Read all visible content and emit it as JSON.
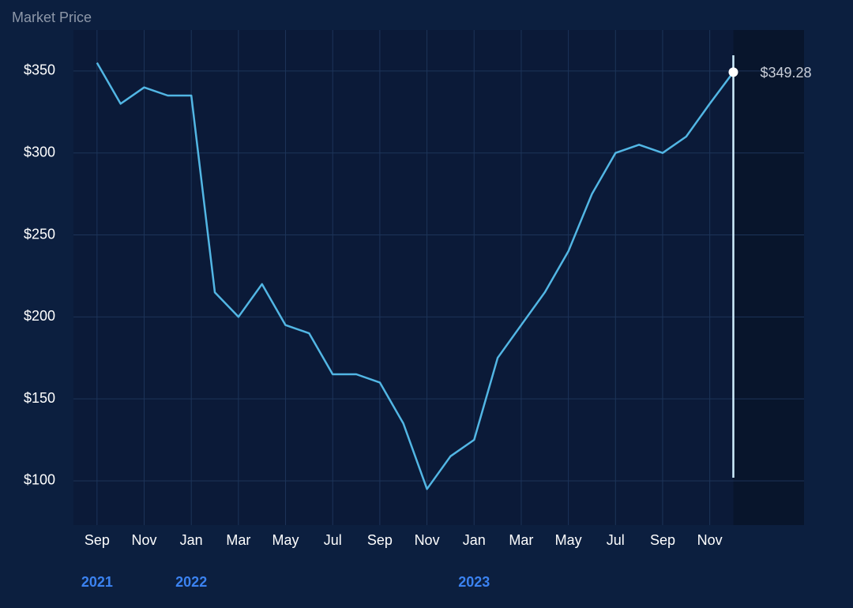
{
  "chart_data": {
    "type": "line",
    "title": "Market Price",
    "x": [
      "2021-09",
      "2021-10",
      "2021-11",
      "2021-12",
      "2022-01",
      "2022-02",
      "2022-03",
      "2022-04",
      "2022-05",
      "2022-06",
      "2022-07",
      "2022-08",
      "2022-09",
      "2022-10",
      "2022-11",
      "2022-12",
      "2023-01",
      "2023-02",
      "2023-03",
      "2023-04",
      "2023-05",
      "2023-06",
      "2023-07",
      "2023-08",
      "2023-09",
      "2023-10",
      "2023-11",
      "2023-12"
    ],
    "series": [
      {
        "name": "Market Price",
        "color": "#52b6e4",
        "values": [
          355,
          330,
          340,
          335,
          335,
          215,
          200,
          220,
          195,
          190,
          165,
          165,
          160,
          135,
          95,
          115,
          125,
          175,
          195,
          215,
          240,
          275,
          300,
          305,
          300,
          310,
          330,
          349.28
        ]
      }
    ],
    "last_label": "$349.28",
    "xlim": [
      "2021-08",
      "2024-03"
    ],
    "xticks": [
      {
        "value": "2021-09",
        "label": "Sep"
      },
      {
        "value": "2021-11",
        "label": "Nov"
      },
      {
        "value": "2022-01",
        "label": "Jan"
      },
      {
        "value": "2022-03",
        "label": "Mar"
      },
      {
        "value": "2022-05",
        "label": "May"
      },
      {
        "value": "2022-07",
        "label": "Jul"
      },
      {
        "value": "2022-09",
        "label": "Sep"
      },
      {
        "value": "2022-11",
        "label": "Nov"
      },
      {
        "value": "2023-01",
        "label": "Jan"
      },
      {
        "value": "2023-03",
        "label": "Mar"
      },
      {
        "value": "2023-05",
        "label": "May"
      },
      {
        "value": "2023-07",
        "label": "Jul"
      },
      {
        "value": "2023-09",
        "label": "Sep"
      },
      {
        "value": "2023-11",
        "label": "Nov"
      }
    ],
    "year_ticks": [
      {
        "value": "2021-09",
        "label": "2021"
      },
      {
        "value": "2022-01",
        "label": "2022"
      },
      {
        "value": "2023-01",
        "label": "2023"
      }
    ],
    "ylim": [
      73,
      375
    ],
    "yticks": [
      {
        "value": 100,
        "label": "$100"
      },
      {
        "value": 150,
        "label": "$150"
      },
      {
        "value": 200,
        "label": "$200"
      },
      {
        "value": 250,
        "label": "$250"
      },
      {
        "value": 300,
        "label": "$300"
      },
      {
        "value": 350,
        "label": "$350"
      }
    ],
    "grid": true
  }
}
